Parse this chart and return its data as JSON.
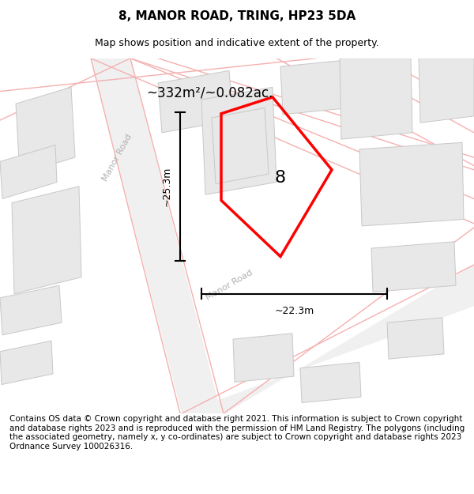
{
  "title": "8, MANOR ROAD, TRING, HP23 5DA",
  "subtitle": "Map shows position and indicative extent of the property.",
  "footer": "Contains OS data © Crown copyright and database right 2021. This information is subject to Crown copyright and database rights 2023 and is reproduced with the permission of HM Land Registry. The polygons (including the associated geometry, namely x, y co-ordinates) are subject to Crown copyright and database rights 2023 Ordnance Survey 100026316.",
  "title_fontsize": 11,
  "subtitle_fontsize": 9,
  "footer_fontsize": 7.5,
  "area_label": "~332m²/~0.082ac.",
  "dim_h_label": "~25.3m",
  "dim_w_label": "~22.3m",
  "map_bg": "#ffffff",
  "road_band_color": "#ececec",
  "road_outline_color": "#f5b0b0",
  "building_face_color": "#e8e8e8",
  "building_edge_color": "#c8c8c8",
  "polygon_color": "#ff0000"
}
